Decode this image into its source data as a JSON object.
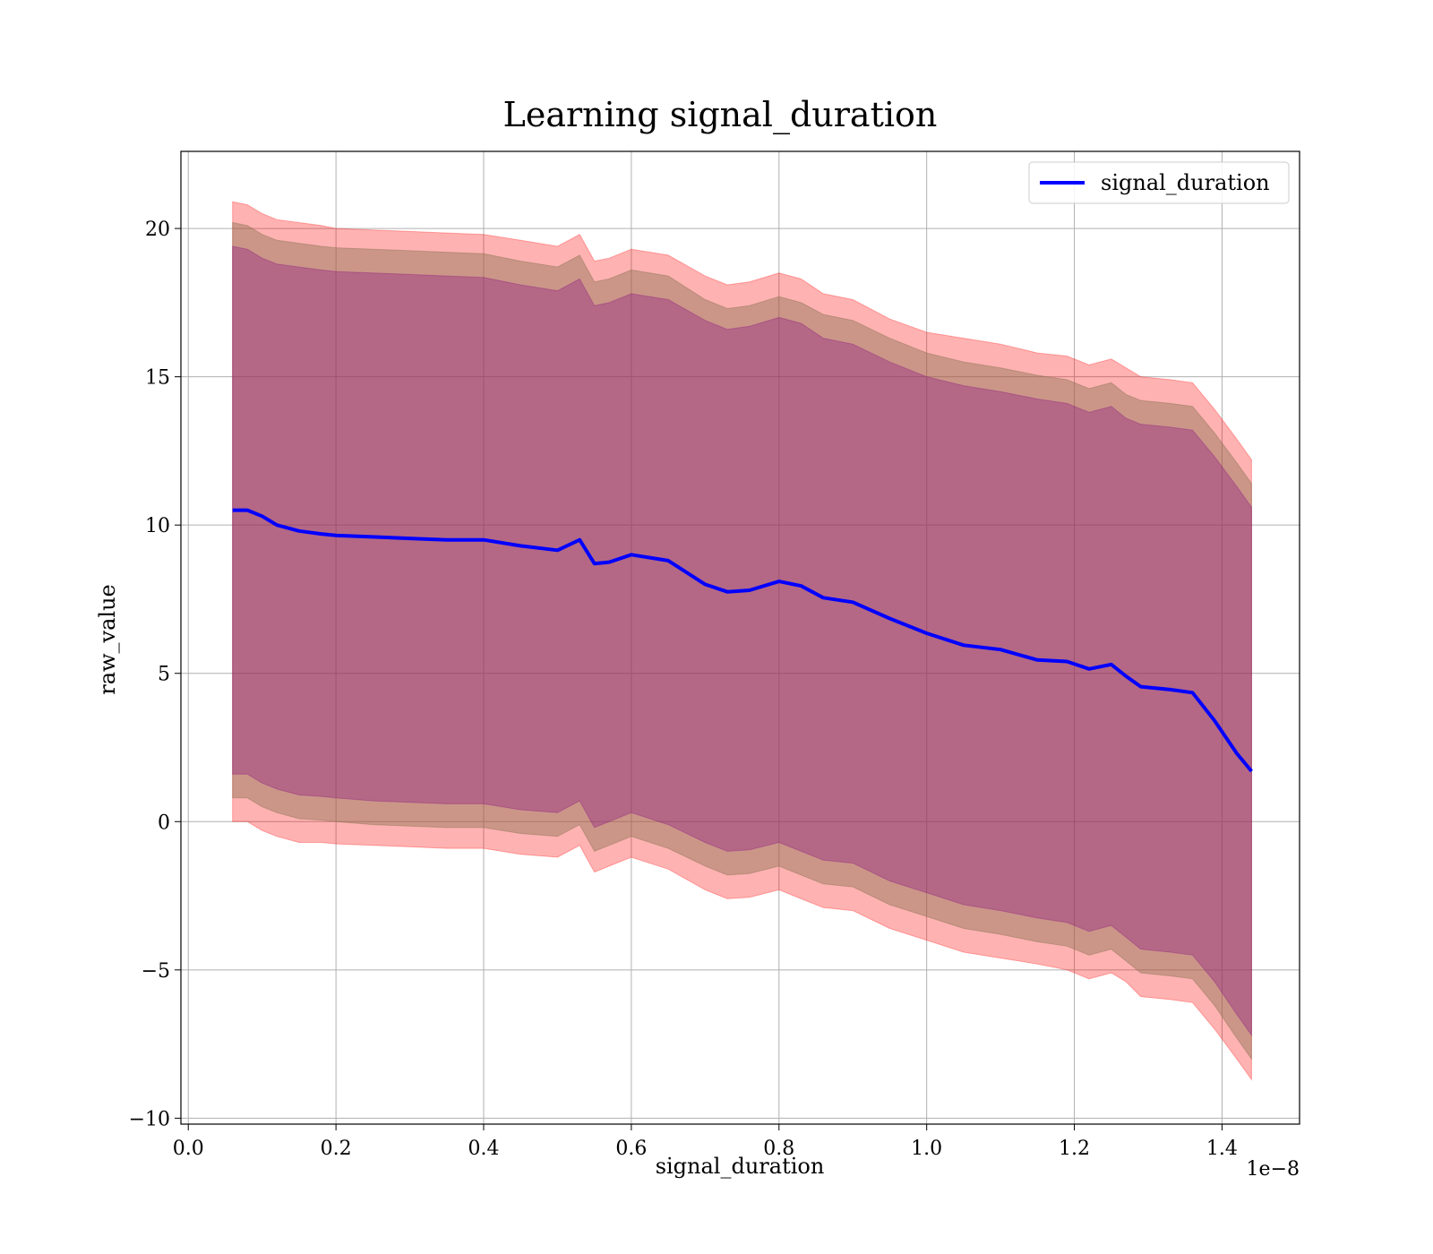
{
  "chart_data": {
    "type": "line",
    "title": "Learning signal_duration",
    "xlabel": "signal_duration",
    "ylabel": "raw_value",
    "x_offset_label": "1e−8",
    "xlim": [
      -0.01,
      1.505
    ],
    "ylim": [
      -10.2,
      22.6
    ],
    "xticks": [
      0.0,
      0.2,
      0.4,
      0.6,
      0.8,
      1.0,
      1.2,
      1.4
    ],
    "xtick_labels": [
      "0.0",
      "0.2",
      "0.4",
      "0.6",
      "0.8",
      "1.0",
      "1.2",
      "1.4"
    ],
    "yticks": [
      -10,
      -5,
      0,
      5,
      10,
      15,
      20
    ],
    "ytick_labels": [
      "−10",
      "−5",
      "0",
      "5",
      "10",
      "15",
      "20"
    ],
    "grid": true,
    "legend": {
      "position": "top-right",
      "entries": [
        {
          "label": "signal_duration",
          "color": "#0000ff"
        }
      ]
    },
    "x": [
      0.06,
      0.08,
      0.1,
      0.12,
      0.15,
      0.18,
      0.2,
      0.25,
      0.3,
      0.35,
      0.4,
      0.45,
      0.5,
      0.53,
      0.55,
      0.57,
      0.6,
      0.65,
      0.7,
      0.73,
      0.76,
      0.8,
      0.83,
      0.86,
      0.9,
      0.95,
      1.0,
      1.05,
      1.1,
      1.15,
      1.19,
      1.22,
      1.25,
      1.27,
      1.29,
      1.33,
      1.36,
      1.39,
      1.42,
      1.44
    ],
    "series": [
      {
        "name": "signal_duration",
        "color": "#0000ff",
        "values": [
          10.5,
          10.5,
          10.3,
          10.0,
          9.8,
          9.7,
          9.65,
          9.6,
          9.55,
          9.5,
          9.5,
          9.3,
          9.15,
          9.5,
          8.7,
          8.75,
          9.0,
          8.8,
          8.0,
          7.75,
          7.8,
          8.1,
          7.95,
          7.55,
          7.4,
          6.85,
          6.35,
          5.95,
          5.8,
          5.45,
          5.4,
          5.15,
          5.3,
          4.9,
          4.55,
          4.45,
          4.35,
          3.4,
          2.3,
          1.7
        ]
      }
    ],
    "bands": [
      {
        "color": "#ff0000",
        "opacity": 0.3,
        "upper": [
          20.9,
          20.8,
          20.5,
          20.3,
          20.2,
          20.1,
          20.0,
          19.95,
          19.9,
          19.85,
          19.8,
          19.6,
          19.4,
          19.8,
          18.9,
          19.0,
          19.3,
          19.1,
          18.4,
          18.1,
          18.2,
          18.5,
          18.3,
          17.8,
          17.6,
          16.95,
          16.5,
          16.3,
          16.1,
          15.8,
          15.7,
          15.4,
          15.6,
          15.3,
          15.0,
          14.9,
          14.8,
          13.9,
          12.9,
          12.2
        ],
        "lower": [
          0.0,
          0.0,
          -0.3,
          -0.5,
          -0.7,
          -0.7,
          -0.75,
          -0.8,
          -0.85,
          -0.9,
          -0.9,
          -1.1,
          -1.2,
          -0.8,
          -1.7,
          -1.5,
          -1.2,
          -1.6,
          -2.3,
          -2.6,
          -2.55,
          -2.3,
          -2.6,
          -2.9,
          -3.0,
          -3.6,
          -4.0,
          -4.4,
          -4.6,
          -4.8,
          -5.0,
          -5.3,
          -5.1,
          -5.4,
          -5.9,
          -6.0,
          -6.1,
          -7.0,
          -8.0,
          -8.7
        ]
      },
      {
        "color": "#8b7355",
        "opacity": 0.45,
        "upper": [
          20.2,
          20.1,
          19.8,
          19.6,
          19.5,
          19.4,
          19.35,
          19.3,
          19.25,
          19.2,
          19.15,
          18.9,
          18.7,
          19.1,
          18.2,
          18.3,
          18.6,
          18.4,
          17.6,
          17.3,
          17.4,
          17.7,
          17.5,
          17.1,
          16.9,
          16.3,
          15.8,
          15.5,
          15.3,
          15.05,
          14.9,
          14.6,
          14.8,
          14.4,
          14.2,
          14.1,
          14.0,
          13.1,
          12.1,
          11.4
        ],
        "lower": [
          0.8,
          0.8,
          0.5,
          0.3,
          0.1,
          0.05,
          0.0,
          -0.1,
          -0.15,
          -0.2,
          -0.2,
          -0.4,
          -0.5,
          -0.1,
          -1.0,
          -0.8,
          -0.5,
          -0.9,
          -1.5,
          -1.8,
          -1.75,
          -1.5,
          -1.8,
          -2.1,
          -2.2,
          -2.8,
          -3.2,
          -3.6,
          -3.8,
          -4.05,
          -4.2,
          -4.5,
          -4.3,
          -4.7,
          -5.1,
          -5.2,
          -5.3,
          -6.2,
          -7.3,
          -8.0
        ]
      },
      {
        "color": "#800080",
        "opacity": 0.3,
        "upper": [
          19.4,
          19.3,
          19.0,
          18.8,
          18.7,
          18.6,
          18.55,
          18.5,
          18.45,
          18.4,
          18.35,
          18.1,
          17.9,
          18.3,
          17.4,
          17.5,
          17.8,
          17.6,
          16.9,
          16.6,
          16.7,
          17.0,
          16.8,
          16.3,
          16.1,
          15.5,
          15.0,
          14.7,
          14.5,
          14.25,
          14.1,
          13.8,
          14.0,
          13.6,
          13.4,
          13.3,
          13.2,
          12.3,
          11.3,
          10.6
        ],
        "lower": [
          1.6,
          1.6,
          1.3,
          1.1,
          0.9,
          0.85,
          0.8,
          0.7,
          0.65,
          0.6,
          0.6,
          0.4,
          0.3,
          0.7,
          -0.2,
          0.0,
          0.3,
          -0.1,
          -0.7,
          -1.0,
          -0.95,
          -0.7,
          -1.0,
          -1.3,
          -1.4,
          -2.0,
          -2.4,
          -2.8,
          -3.0,
          -3.25,
          -3.4,
          -3.7,
          -3.5,
          -3.9,
          -4.3,
          -4.4,
          -4.5,
          -5.4,
          -6.5,
          -7.2
        ]
      }
    ]
  }
}
